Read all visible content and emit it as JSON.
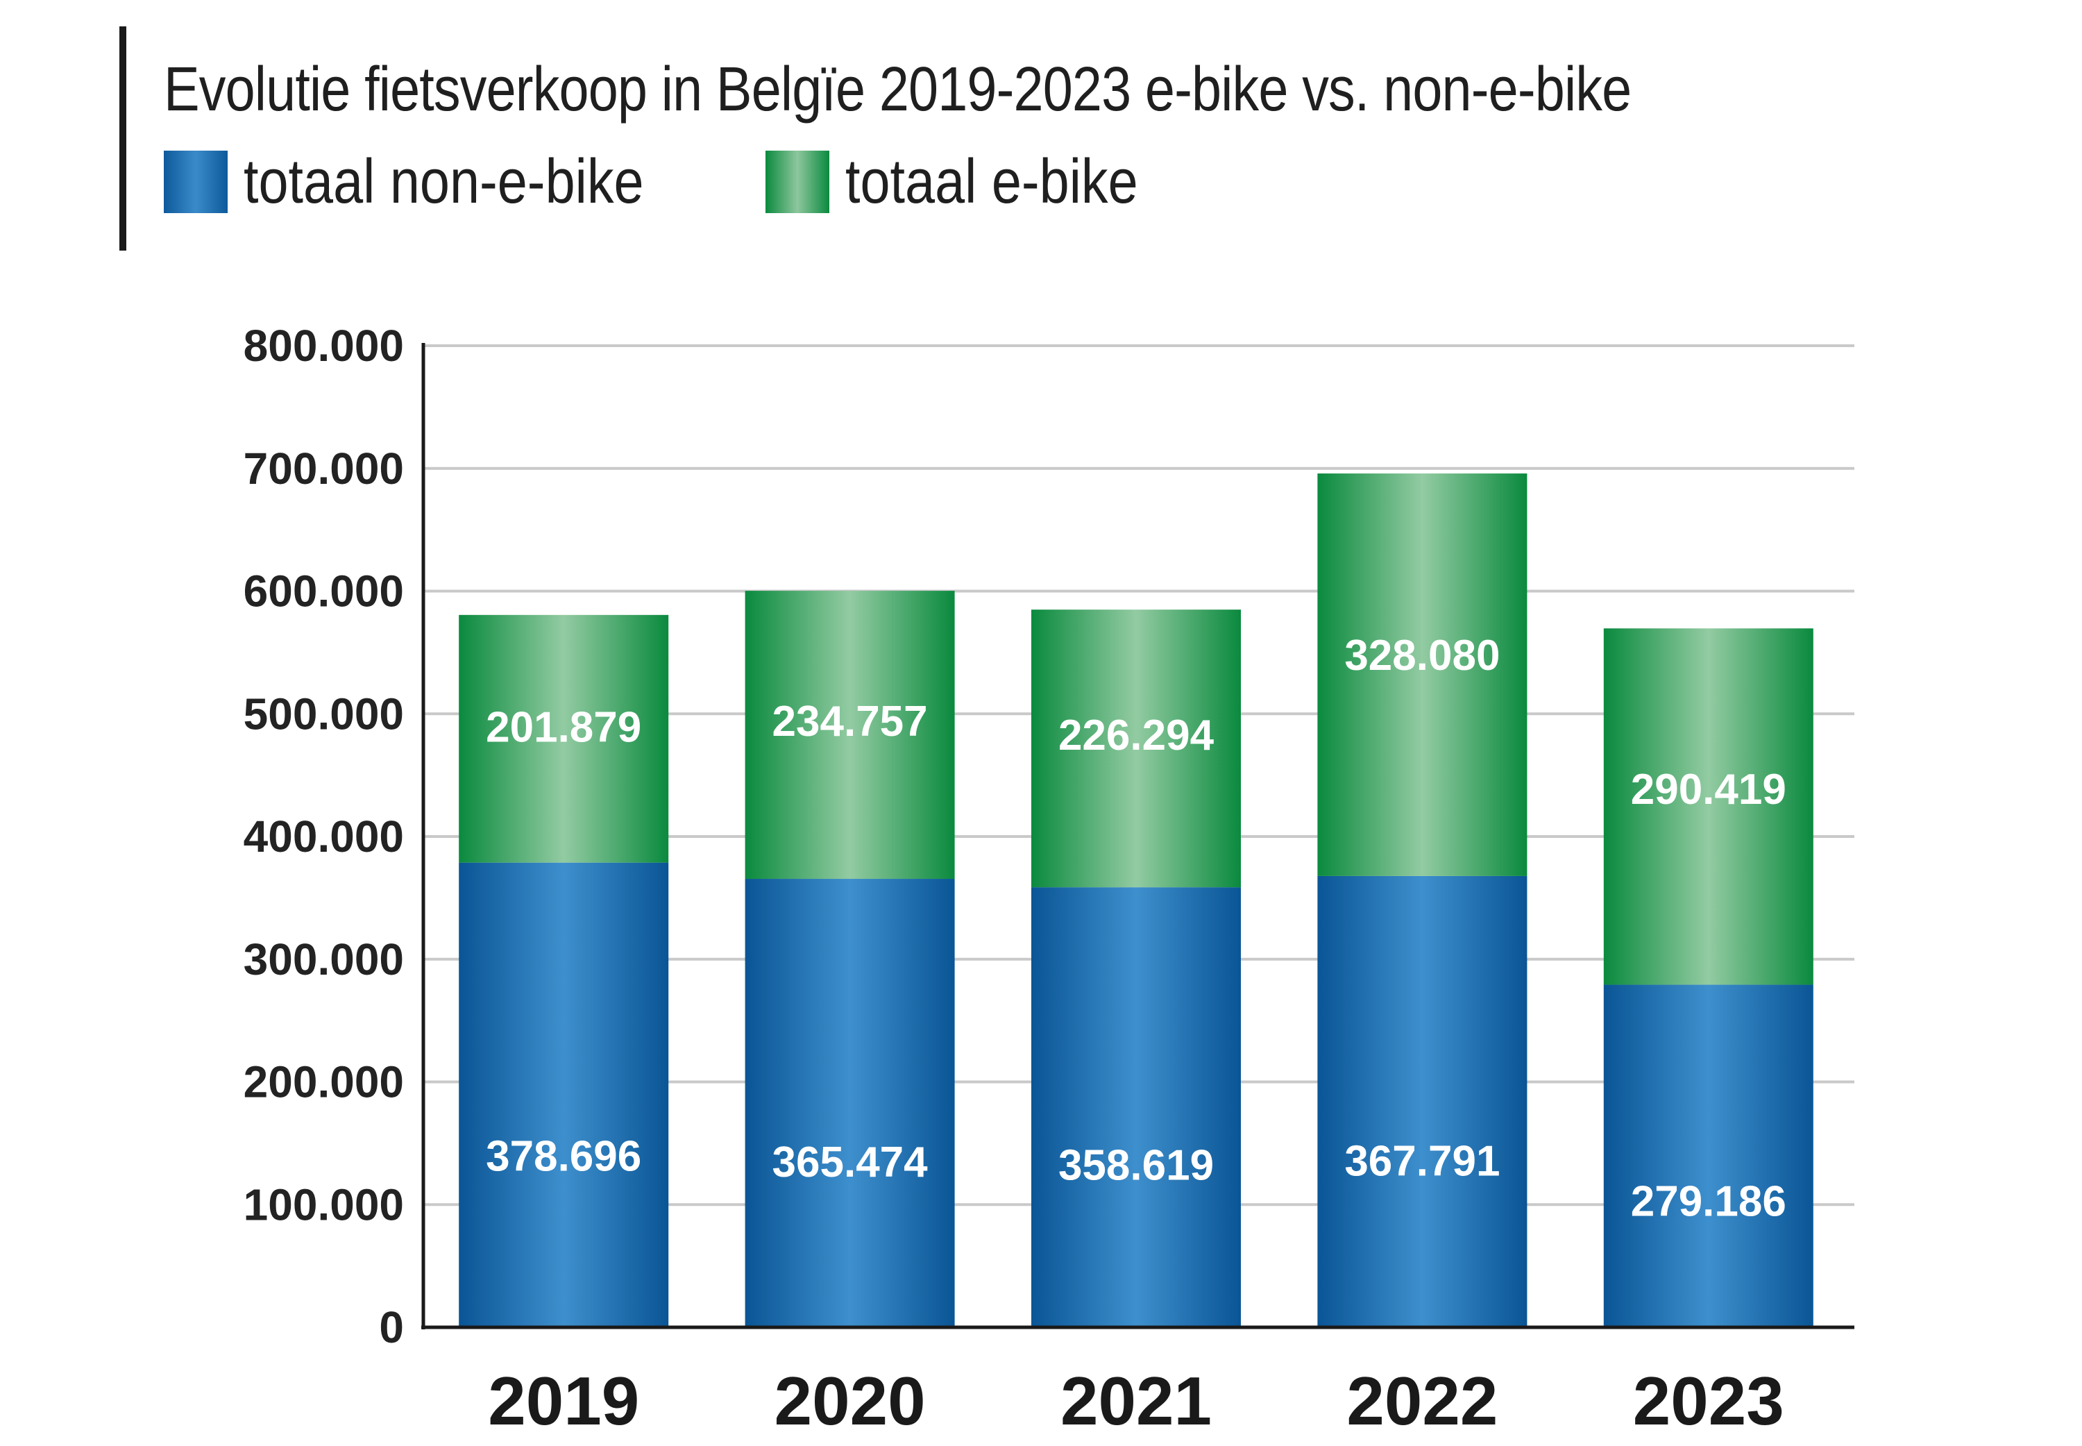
{
  "chart_data": {
    "type": "bar",
    "stacked": true,
    "title": "Evolutie fietsverkoop in Belgïe 2019-2023 e-bike vs. non-e-bike",
    "categories": [
      "2019",
      "2020",
      "2021",
      "2022",
      "2023"
    ],
    "series": [
      {
        "name": "totaal non-e-bike",
        "values": [
          378696,
          365474,
          358619,
          367791,
          279186
        ],
        "labels": [
          "378.696",
          "365.474",
          "358.619",
          "367.791",
          "279.186"
        ],
        "color": "#1a66aa"
      },
      {
        "name": "totaal e-bike",
        "values": [
          201879,
          234757,
          226294,
          328080,
          290419
        ],
        "labels": [
          "201.879",
          "234.757",
          "226.294",
          "328.080",
          "290.419"
        ],
        "color": "#0f8f45"
      }
    ],
    "ylim": [
      0,
      800000
    ],
    "yticks": [
      0,
      100000,
      200000,
      300000,
      400000,
      500000,
      600000,
      700000,
      800000
    ],
    "ytick_labels": [
      "0",
      "100.000",
      "200.000",
      "300.000",
      "400.000",
      "500.000",
      "600.000",
      "700.000",
      "800.000"
    ],
    "grid": true,
    "legend_position": "top-left"
  }
}
